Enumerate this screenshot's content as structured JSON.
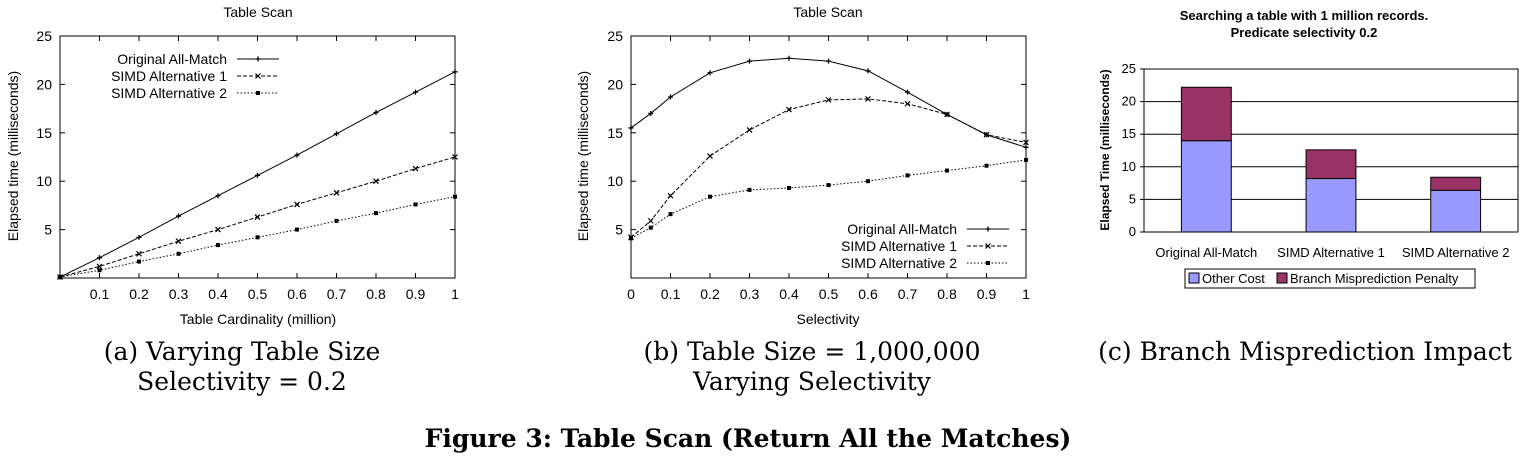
{
  "figure_caption": "Figure 3: Table Scan (Return All the Matches)",
  "chart_data": [
    {
      "type": "line",
      "title": "Table Scan",
      "xlabel": "Table Cardinality (million)",
      "ylabel": "Elapsed time (milliseconds)",
      "xlim": [
        0,
        1
      ],
      "ylim": [
        0,
        25
      ],
      "xticks": [
        "0.1",
        "0.2",
        "0.3",
        "0.4",
        "0.5",
        "0.6",
        "0.7",
        "0.8",
        "0.9",
        "1"
      ],
      "yticks": [
        "5",
        "10",
        "15",
        "20",
        "25"
      ],
      "grid": false,
      "legend_position": "top-left",
      "caption_lines": [
        "(a) Varying Table Size",
        "Selectivity = 0.2"
      ],
      "x": [
        0,
        0.1,
        0.2,
        0.3,
        0.4,
        0.5,
        0.6,
        0.7,
        0.8,
        0.9,
        1.0
      ],
      "series": [
        {
          "name": "Original All-Match",
          "marker": "plus",
          "dash": "solid",
          "values": [
            0.1,
            2.1,
            4.2,
            6.4,
            8.5,
            10.6,
            12.7,
            14.9,
            17.1,
            19.2,
            21.3
          ]
        },
        {
          "name": "SIMD Alternative 1",
          "marker": "x",
          "dash": "dashed",
          "values": [
            0.1,
            1.2,
            2.5,
            3.8,
            5.0,
            6.3,
            7.6,
            8.8,
            10.0,
            11.3,
            12.5
          ]
        },
        {
          "name": "SIMD Alternative 2",
          "marker": "square",
          "dash": "dotted",
          "values": [
            0.1,
            0.8,
            1.7,
            2.5,
            3.4,
            4.2,
            5.0,
            5.9,
            6.7,
            7.6,
            8.4
          ]
        }
      ]
    },
    {
      "type": "line",
      "title": "Table Scan",
      "xlabel": "Selectivity",
      "ylabel": "Elapsed time (milliseconds)",
      "xlim": [
        0,
        1
      ],
      "ylim": [
        0,
        25
      ],
      "xticks": [
        "0",
        "0.1",
        "0.2",
        "0.3",
        "0.4",
        "0.5",
        "0.6",
        "0.7",
        "0.8",
        "0.9",
        "1"
      ],
      "yticks": [
        "5",
        "10",
        "15",
        "20",
        "25"
      ],
      "grid": false,
      "legend_position": "bottom-right",
      "caption_lines": [
        "(b) Table Size = 1,000,000",
        "Varying Selectivity"
      ],
      "series": [
        {
          "name": "Original All-Match",
          "marker": "plus",
          "dash": "solid",
          "x": [
            0,
            0.05,
            0.1,
            0.2,
            0.3,
            0.4,
            0.5,
            0.6,
            0.7,
            0.8,
            0.9,
            1.0
          ],
          "values": [
            15.5,
            17.0,
            18.7,
            21.2,
            22.4,
            22.7,
            22.4,
            21.4,
            19.2,
            16.9,
            14.8,
            13.5
          ]
        },
        {
          "name": "SIMD Alternative 1",
          "marker": "x",
          "dash": "dashed",
          "x": [
            0,
            0.05,
            0.1,
            0.2,
            0.3,
            0.4,
            0.5,
            0.6,
            0.7,
            0.8,
            0.9,
            1.0
          ],
          "values": [
            4.2,
            5.9,
            8.5,
            12.6,
            15.3,
            17.4,
            18.4,
            18.5,
            18.0,
            16.9,
            14.8,
            14.0
          ]
        },
        {
          "name": "SIMD Alternative 2",
          "marker": "square",
          "dash": "dotted",
          "x": [
            0,
            0.05,
            0.1,
            0.2,
            0.3,
            0.4,
            0.5,
            0.6,
            0.7,
            0.8,
            0.9,
            1.0
          ],
          "values": [
            4.1,
            5.2,
            6.6,
            8.4,
            9.1,
            9.3,
            9.6,
            10.0,
            10.6,
            11.1,
            11.6,
            12.2
          ]
        }
      ]
    },
    {
      "type": "bar",
      "stacked": true,
      "title_lines": [
        "Searching a table with 1 million records.",
        "Predicate selectivity 0.2"
      ],
      "xlabel": "",
      "ylabel": "Elapsed Time (milliseconds)",
      "ylim": [
        0,
        25
      ],
      "yticks": [
        "0",
        "5",
        "10",
        "15",
        "20",
        "25"
      ],
      "grid": true,
      "legend_position": "bottom",
      "caption_lines": [
        "(c) Branch Misprediction Impact"
      ],
      "categories": [
        "Original All-Match",
        "SIMD Alternative 1",
        "SIMD Alternative 2"
      ],
      "series": [
        {
          "name": "Other Cost",
          "color": "#9999ff",
          "values": [
            14.0,
            8.2,
            6.4
          ]
        },
        {
          "name": "Branch Misprediction Penalty",
          "color": "#993366",
          "values": [
            8.2,
            4.4,
            2.0
          ]
        }
      ]
    }
  ]
}
